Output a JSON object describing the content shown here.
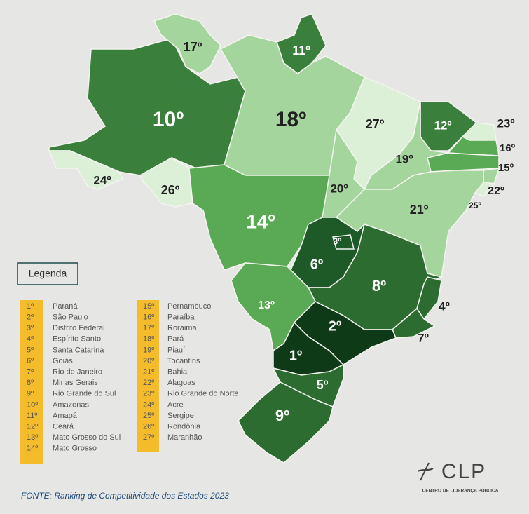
{
  "map": {
    "regions": [
      {
        "label": "10º",
        "color": "#3b7f3c"
      },
      {
        "label": "17º",
        "color": "#a4d59c"
      },
      {
        "label": "11º",
        "color": "#3b7f3c"
      },
      {
        "label": "18º",
        "color": "#a4d59c"
      },
      {
        "label": "27º",
        "color": "#dcefd7"
      },
      {
        "label": "12º",
        "color": "#3b7f3c"
      },
      {
        "label": "23º",
        "color": "#dcefd7"
      },
      {
        "label": "16º",
        "color": "#5aaa55"
      },
      {
        "label": "15º",
        "color": "#5aaa55"
      },
      {
        "label": "22º",
        "color": "#a4d59c"
      },
      {
        "label": "25º",
        "color": "#dcefd7"
      },
      {
        "label": "19º",
        "color": "#a4d59c"
      },
      {
        "label": "21º",
        "color": "#a4d59c"
      },
      {
        "label": "20º",
        "color": "#a4d59c"
      },
      {
        "label": "24º",
        "color": "#dcefd7"
      },
      {
        "label": "26º",
        "color": "#dcefd7"
      },
      {
        "label": "14º",
        "color": "#5aaa55"
      },
      {
        "label": "6º",
        "color": "#1e5a27"
      },
      {
        "label": "3º",
        "color": "#1e5a27"
      },
      {
        "label": "8º",
        "color": "#2c6c31"
      },
      {
        "label": "4º",
        "color": "#2c6c31"
      },
      {
        "label": "7º",
        "color": "#2c6c31"
      },
      {
        "label": "13º",
        "color": "#5aaa55"
      },
      {
        "label": "2º",
        "color": "#0f3a17"
      },
      {
        "label": "1º",
        "color": "#0f3a17"
      },
      {
        "label": "5º",
        "color": "#2c6c31"
      },
      {
        "label": "9º",
        "color": "#2c6c31"
      }
    ]
  },
  "legend": {
    "title": "Legenda",
    "items": [
      {
        "rank": "1º",
        "state": "Paraná"
      },
      {
        "rank": "2º",
        "state": "São Paulo"
      },
      {
        "rank": "3º",
        "state": "Distrito Federal"
      },
      {
        "rank": "4º",
        "state": "Espírito Santo"
      },
      {
        "rank": "5º",
        "state": "Santa Catarina"
      },
      {
        "rank": "6º",
        "state": "Goiás"
      },
      {
        "rank": "7º",
        "state": "Rio de Janeiro"
      },
      {
        "rank": "8º",
        "state": "Minas Gerais"
      },
      {
        "rank": "9º",
        "state": "Rio Grande do Sul"
      },
      {
        "rank": "10º",
        "state": "Amazonas"
      },
      {
        "rank": "11º",
        "state": "Amapá"
      },
      {
        "rank": "12º",
        "state": "Ceará"
      },
      {
        "rank": "13º",
        "state": "Mato Grosso do Sul"
      },
      {
        "rank": "14º",
        "state": "Mato Grosso"
      },
      {
        "rank": "15º",
        "state": "Pernambuco"
      },
      {
        "rank": "16º",
        "state": "Paraíba"
      },
      {
        "rank": "17º",
        "state": "Roraima"
      },
      {
        "rank": "18º",
        "state": "Pará"
      },
      {
        "rank": "19º",
        "state": "Piauí"
      },
      {
        "rank": "20º",
        "state": "Tocantins"
      },
      {
        "rank": "21º",
        "state": "Bahia"
      },
      {
        "rank": "22º",
        "state": "Alagoas"
      },
      {
        "rank": "23º",
        "state": "Rio Grande do Norte"
      },
      {
        "rank": "24º",
        "state": "Acre"
      },
      {
        "rank": "25º",
        "state": "Sergipe"
      },
      {
        "rank": "26º",
        "state": "Rondônia"
      },
      {
        "rank": "27º",
        "state": "Maranhão"
      }
    ]
  },
  "source": "FONTE: Ranking de Competitividade dos Estados 2023",
  "logo": {
    "name": "CLP",
    "subtitle": "CENTRO DE LIDERANÇA PÚBLICA"
  }
}
